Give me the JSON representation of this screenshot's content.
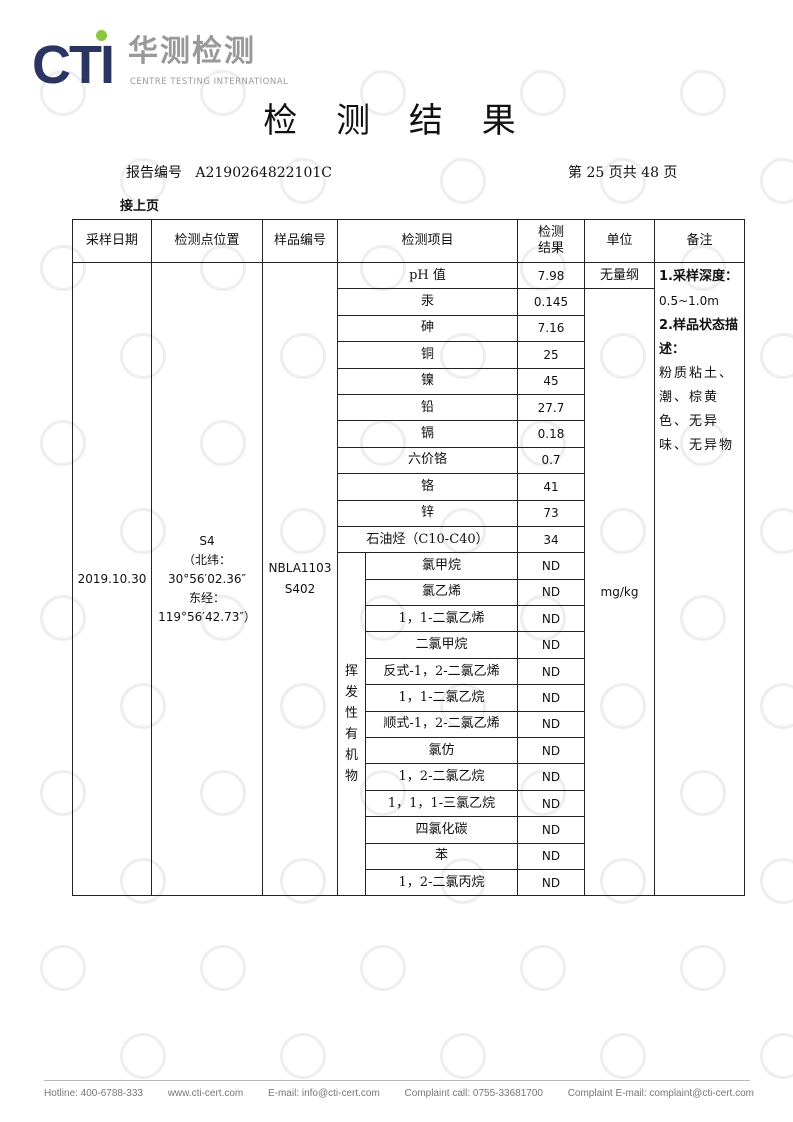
{
  "logo": {
    "brand": "CTI",
    "cn": "华测检测",
    "en": "CENTRE TESTING INTERNATIONAL"
  },
  "title": "检 测 结 果",
  "report_no_label": "报告编号",
  "report_no": "A2190264822101C",
  "page_info": "第 25 页共 48 页",
  "continued": "接上页",
  "headers": {
    "date": "采样日期",
    "location": "检测点位置",
    "sample_no": "样品编号",
    "item": "检测项目",
    "result": "检测结果",
    "unit": "单位",
    "remark": "备注"
  },
  "sample": {
    "date": "2019.10.30",
    "location": [
      "S4",
      "（北纬：",
      "30°56′02.36″",
      "东经：",
      "119°56′42.73″）"
    ],
    "sample_no": [
      "NBLA1103",
      "S402"
    ]
  },
  "units": {
    "ph": "无量纲",
    "other": "mg/kg"
  },
  "voc_group": "挥发性有机物",
  "items": [
    {
      "name": "pH 值",
      "result": "7.98"
    },
    {
      "name": "汞",
      "result": "0.145"
    },
    {
      "name": "砷",
      "result": "7.16"
    },
    {
      "name": "铜",
      "result": "25"
    },
    {
      "name": "镍",
      "result": "45"
    },
    {
      "name": "铅",
      "result": "27.7"
    },
    {
      "name": "镉",
      "result": "0.18"
    },
    {
      "name": "六价铬",
      "result": "0.7"
    },
    {
      "name": "铬",
      "result": "41"
    },
    {
      "name": "锌",
      "result": "73"
    },
    {
      "name": "石油烃（C10-C40）",
      "result": "34"
    }
  ],
  "voc_items": [
    {
      "name": "氯甲烷",
      "result": "ND"
    },
    {
      "name": "氯乙烯",
      "result": "ND"
    },
    {
      "name": "1，1-二氯乙烯",
      "result": "ND"
    },
    {
      "name": "二氯甲烷",
      "result": "ND"
    },
    {
      "name": "反式-1，2-二氯乙烯",
      "result": "ND"
    },
    {
      "name": "1，1-二氯乙烷",
      "result": "ND"
    },
    {
      "name": "顺式-1，2-二氯乙烯",
      "result": "ND"
    },
    {
      "name": "氯仿",
      "result": "ND"
    },
    {
      "name": "1，2-二氯乙烷",
      "result": "ND"
    },
    {
      "name": "1，1，1-三氯乙烷",
      "result": "ND"
    },
    {
      "name": "四氯化碳",
      "result": "ND"
    },
    {
      "name": "苯",
      "result": "ND"
    },
    {
      "name": "1，2-二氯丙烷",
      "result": "ND"
    }
  ],
  "remark": {
    "depth_label": "1.采样深度：",
    "depth": "0.5~1.0m",
    "state_label": "2.样品状态描述：",
    "state": "粉质粘土、潮、棕黄色、无异味、无异物"
  },
  "footer": {
    "hotline": "Hotline: 400-6788-333",
    "web": "www.cti-cert.com",
    "email": "E-mail: info@cti-cert.com",
    "complaint_call": "Complaint call: 0755-33681700",
    "complaint_email": "Complaint E-mail: complaint@cti-cert.com"
  }
}
